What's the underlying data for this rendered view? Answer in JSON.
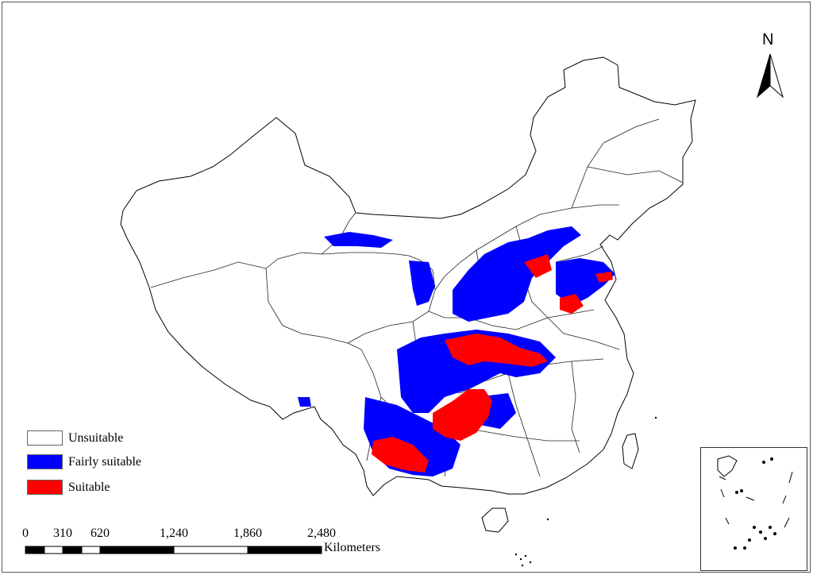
{
  "map": {
    "north_label": "N",
    "legend": [
      {
        "key": "unsuitable",
        "label": "Unsuitable",
        "color": "#ffffff"
      },
      {
        "key": "fairly_suitable",
        "label": "Fairly suitable",
        "color": "#0000ff"
      },
      {
        "key": "suitable",
        "label": "Suitable",
        "color": "#ff0000"
      }
    ],
    "scale_bar": {
      "ticks": [
        "0",
        "310",
        "620",
        "1,240",
        "1,860",
        "2,480"
      ],
      "units": "Kilometers"
    }
  }
}
